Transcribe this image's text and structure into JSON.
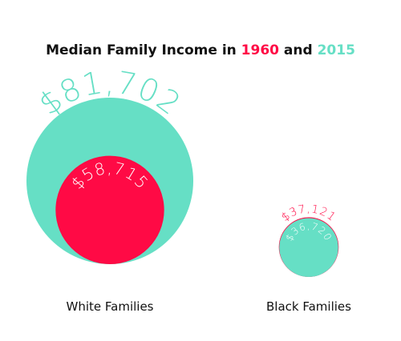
{
  "chart_data": {
    "type": "nested-bubble",
    "title": "Median Family Income in",
    "title_joiner": "and",
    "categories": [
      "White Families",
      "Black Families"
    ],
    "series": [
      {
        "name": "1960",
        "color": "#ff0a45",
        "values": [
          58715,
          37121
        ],
        "value_labels": [
          "$58,715",
          "$37,121"
        ]
      },
      {
        "name": "2015",
        "color": "#66dfc5",
        "values": [
          81702,
          36720
        ],
        "value_labels": [
          "$81,702",
          "$36,720"
        ]
      }
    ]
  }
}
